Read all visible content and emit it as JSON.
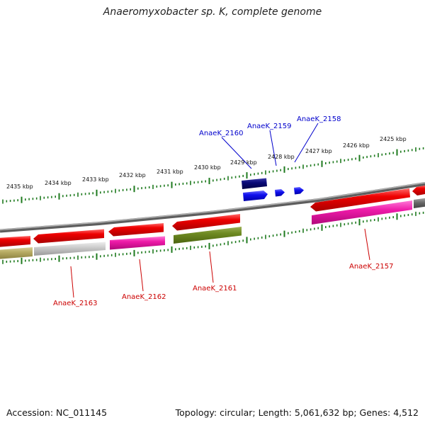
{
  "title": "Anaeromyxobacter sp. K, complete genome",
  "footer": {
    "accession": "Accession: NC_011145",
    "summary": "Topology: circular; Length: 5,061,632 bp; Genes: 4,512"
  },
  "colors": {
    "backbone": "#7a7a7a",
    "tick": "#1e7a1e",
    "label_top": "#0000cc",
    "label_bottom": "#cc0000"
  },
  "scale_labels": [
    "2435 kbp",
    "2434 kbp",
    "2433 kbp",
    "2432 kbp",
    "2431 kbp",
    "2430 kbp",
    "2429 kbp",
    "2428 kbp",
    "2427 kbp",
    "2426 kbp",
    "2425 kbp"
  ],
  "gene_labels_top": [
    "AnaeK_2160",
    "AnaeK_2159",
    "AnaeK_2158"
  ],
  "gene_labels_bottom": [
    "AnaeK_2163",
    "AnaeK_2162",
    "AnaeK_2161",
    "AnaeK_2157"
  ]
}
